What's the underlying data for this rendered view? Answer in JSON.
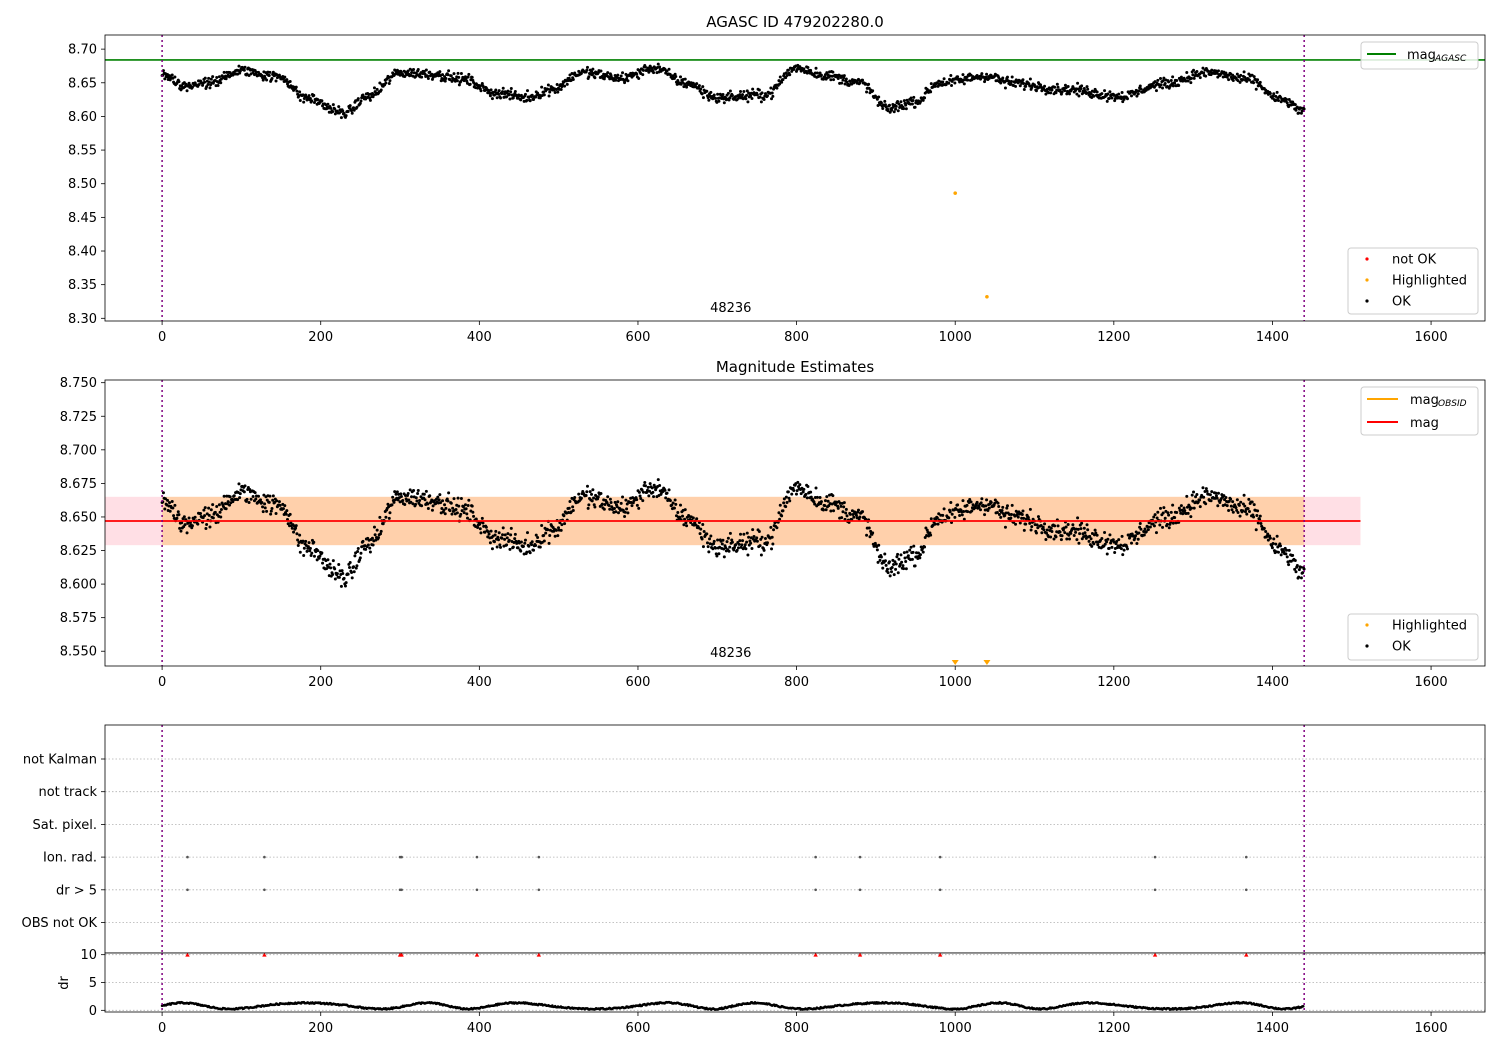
{
  "chart_data": [
    {
      "type": "scatter",
      "title": "AGASC ID 479202280.0",
      "xlabel": "",
      "ylabel": "",
      "xlim": [
        -72,
        1668
      ],
      "ylim": [
        8.296,
        8.721
      ],
      "xticks": [
        "0",
        "200",
        "400",
        "600",
        "800",
        "1000",
        "1200",
        "1400",
        "1600"
      ],
      "yticks": [
        "8.30",
        "8.35",
        "8.40",
        "8.45",
        "8.50",
        "8.55",
        "8.60",
        "8.65",
        "8.70"
      ],
      "grid": false,
      "hlines": [
        {
          "name": "mag_AGASC",
          "y": 8.684,
          "color": "#008000"
        }
      ],
      "vlines": [
        0,
        1440
      ],
      "annotation": "48236",
      "highlighted_points": [
        [
          1000,
          8.486
        ],
        [
          1040,
          8.332
        ]
      ],
      "series": [
        {
          "name": "not OK",
          "color": "#ff0000",
          "values": []
        },
        {
          "name": "Highlighted",
          "color": "#ffa500"
        },
        {
          "name": "OK",
          "color": "#000000",
          "mean": 8.646,
          "range": [
            8.597,
            8.687
          ],
          "n_points": 1440
        }
      ],
      "legends": [
        {
          "placement": "top-right",
          "entries": [
            {
              "label": "mag",
              "sub": "AGASC"
            }
          ]
        },
        {
          "placement": "lower-right",
          "entries": [
            {
              "label": "not OK"
            },
            {
              "label": "Highlighted"
            },
            {
              "label": "OK"
            }
          ]
        }
      ]
    },
    {
      "type": "scatter",
      "title": "Magnitude Estimates",
      "xlabel": "",
      "ylabel": "",
      "xlim": [
        -72,
        1668
      ],
      "ylim": [
        8.539,
        8.752
      ],
      "xticks": [
        "0",
        "200",
        "400",
        "600",
        "800",
        "1000",
        "1200",
        "1400",
        "1600"
      ],
      "yticks": [
        "8.550",
        "8.575",
        "8.600",
        "8.625",
        "8.650",
        "8.675",
        "8.700",
        "8.725",
        "8.750"
      ],
      "grid": false,
      "hlines": [
        {
          "name": "mag",
          "y": 8.647,
          "color": "#ff0000"
        }
      ],
      "bands": [
        {
          "name": "mag_OBSID",
          "y_range": [
            8.629,
            8.665
          ],
          "x_range": [
            0,
            1440
          ],
          "color": "#ffa500"
        },
        {
          "name": "mag",
          "y_range": [
            8.629,
            8.665
          ],
          "x_range": [
            -72,
            1511
          ],
          "color": "#ffc0cb"
        }
      ],
      "vlines": [
        0,
        1440
      ],
      "annotation": "48236",
      "highlighted_markers_below_axis": [
        1000,
        1040
      ],
      "series": [
        {
          "name": "Highlighted",
          "color": "#ffa500"
        },
        {
          "name": "OK",
          "color": "#000000",
          "mean": 8.646,
          "range": [
            8.597,
            8.687
          ],
          "n_points": 1440
        }
      ],
      "legends": [
        {
          "placement": "top-right",
          "entries": [
            {
              "label": "mag",
              "sub": "OBSID"
            },
            {
              "label": "mag",
              "sub": ""
            }
          ]
        },
        {
          "placement": "lower-right",
          "entries": [
            {
              "label": "Highlighted"
            },
            {
              "label": "OK"
            }
          ]
        }
      ]
    },
    {
      "type": "scatter",
      "title": "",
      "xlabel": "",
      "ylabel": "",
      "xlim": [
        -72,
        1668
      ],
      "xticks": [
        "0",
        "200",
        "400",
        "600",
        "800",
        "1000",
        "1200",
        "1400",
        "1600"
      ],
      "categories": [
        "not Kalman",
        "not track",
        "Sat. pixel.",
        "Ion. rad.",
        "dr > 5",
        "OBS not OK"
      ],
      "grid": true,
      "vlines": [
        0,
        1440
      ],
      "flag_points": {
        "Ion. rad.": [
          32,
          129,
          300,
          302,
          397,
          475,
          824,
          880,
          981,
          1252,
          1367
        ],
        "dr > 5": [
          32,
          129,
          300,
          302,
          397,
          475,
          824,
          880,
          981,
          1252,
          1367
        ]
      }
    },
    {
      "type": "scatter",
      "title": "",
      "xlabel": "",
      "ylabel": "dr",
      "xlim": [
        -72,
        1668
      ],
      "ylim": [
        -0.3,
        10.3
      ],
      "xticks": [
        "0",
        "200",
        "400",
        "600",
        "800",
        "1000",
        "1200",
        "1400",
        "1600"
      ],
      "yticks": [
        "0",
        "5",
        "10"
      ],
      "grid": true,
      "vlines": [
        0,
        1440
      ],
      "clipped_markers_at_10": [
        32,
        129,
        300,
        302,
        397,
        475,
        824,
        880,
        981,
        1252,
        1367
      ],
      "series": [
        {
          "name": "dr",
          "color": "#000000",
          "range": [
            0.2,
            1.6
          ],
          "n_points": 1440
        }
      ]
    }
  ]
}
